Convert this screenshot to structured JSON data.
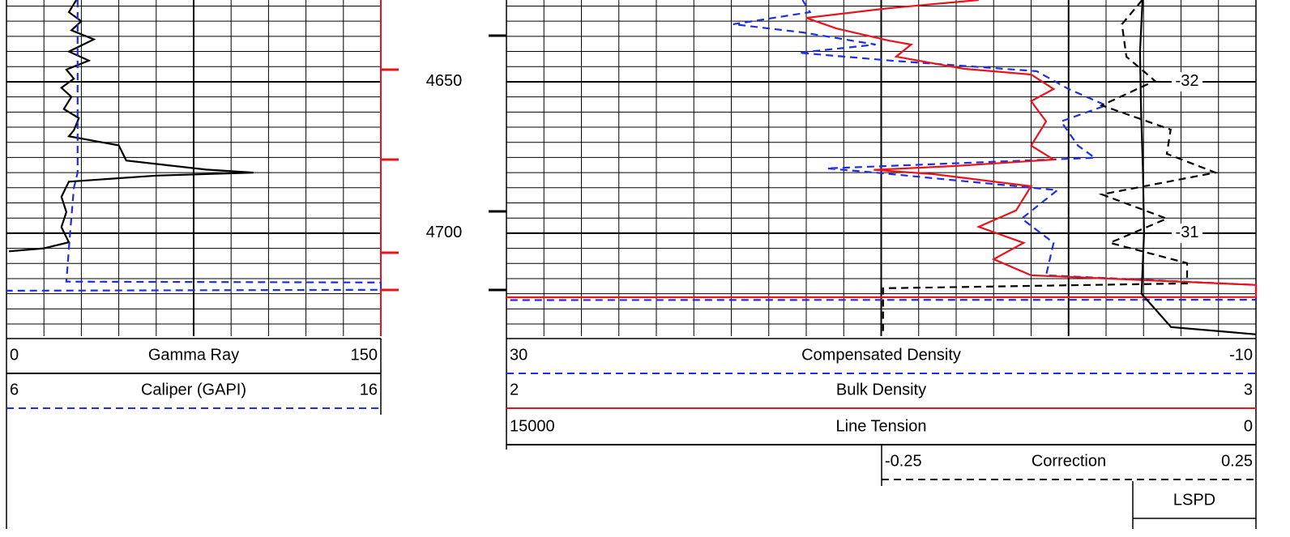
{
  "chart_data": {
    "type": "well-log",
    "ylim": [
      4623,
      4734
    ],
    "yticks": [
      4650,
      4700
    ],
    "grid": true,
    "tracks": [
      {
        "series": [
          {
            "name": "Gamma Ray",
            "color": "#000000",
            "dash": false,
            "xlim": [
              0,
              150
            ],
            "depth": [
              4623,
              4627,
              4630,
              4633,
              4636,
              4640,
              4643,
              4646,
              4649,
              4652,
              4655,
              4659,
              4662,
              4666,
              4668,
              4671,
              4676,
              4679,
              4680,
              4681,
              4683,
              4688,
              4693,
              4698,
              4703,
              4705,
              4706
            ],
            "values": [
              28,
              25,
              30,
              26,
              35,
              25,
              33,
              24,
              27,
              22,
              26,
              23,
              29,
              27,
              25,
              45,
              48,
              80,
              99,
              60,
              25,
              22,
              24,
              22,
              25,
              15,
              1
            ]
          },
          {
            "name": "Caliper (GAPI)",
            "color": "#1f2fe0",
            "dash": true,
            "xlim": [
              6,
              16
            ],
            "depth": [
              4623,
              4680,
              4685,
              4700,
              4716,
              4716.3,
              4718.7,
              4719
            ],
            "values": [
              7.9,
              7.9,
              7.8,
              7.7,
              7.6,
              16,
              16,
              6
            ]
          }
        ]
      },
      {
        "series": [
          {
            "name": "Compensated Density",
            "color": "#1f2fe0",
            "dash": true,
            "xlim": [
              30,
              -10
            ],
            "depth": [
              4623,
              4627,
              4631,
              4633.7,
              4637.7,
              4640.4,
              4643,
              4646.5,
              4652.4,
              4657.8,
              4663.1,
              4671.1,
              4675.1,
              4678.6,
              4680,
              4685.8,
              4695.2,
              4703.2,
              4713.9,
              4717.1,
              4722,
              4722.1
            ],
            "values": [
              14.2,
              13.8,
              17.9,
              14.2,
              10.3,
              14.4,
              9.5,
              1.7,
              0,
              -2,
              0.4,
              -0.5,
              -1.4,
              12.9,
              10.3,
              0.6,
              2.5,
              0.8,
              1.2,
              -10,
              -10,
              30
            ]
          },
          {
            "name": "Bulk Density",
            "color": "#e8141c",
            "dash": false,
            "xlim": [
              2,
              3
            ],
            "depth": [
              4623,
              4625.7,
              4628.9,
              4632.4,
              4636.4,
              4637.7,
              4641.7,
              4645.7,
              4647.6,
              4652.4,
              4656.4,
              4663.1,
              4671.1,
              4675.7,
              4677.8,
              4679.1,
              4680.5,
              4684.5,
              4692.5,
              4697.9,
              4703.2,
              4708.6,
              4713.9,
              4717.1,
              4721.1,
              4721.2
            ],
            "values": [
              2.63,
              2.51,
              2.4,
              2.44,
              2.51,
              2.54,
              2.52,
              2.61,
              2.7,
              2.73,
              2.7,
              2.72,
              2.7,
              2.73,
              2.6,
              2.49,
              2.57,
              2.7,
              2.68,
              2.63,
              2.69,
              2.65,
              2.7,
              3,
              3,
              2
            ]
          },
          {
            "name": "Line Tension",
            "color": "#000000",
            "dash": false,
            "xlim": [
              15000,
              0
            ],
            "depth": [
              4623,
              4640,
              4660,
              4680,
              4700,
              4720,
              4731,
              4733.4
            ],
            "values": [
              2270,
              2320,
              2300,
              2260,
              2240,
              2290,
              1700,
              0
            ]
          },
          {
            "name": "Correction",
            "color": "#000000",
            "dash": true,
            "xlim": [
              -0.25,
              0.25
            ],
            "depth": [
              4623,
              4631,
              4641.7,
              4649.7,
              4657.8,
              4665.8,
              4673.8,
              4680,
              4687.2,
              4695.2,
              4703.2,
              4709.9,
              4716.6,
              4718.2,
              4733.4
            ],
            "values": [
              0.098,
              0.071,
              0.077,
              0.115,
              0.044,
              0.136,
              0.131,
              0.196,
              0.044,
              0.131,
              0.055,
              0.158,
              0.158,
              -0.248,
              -0.248
            ]
          },
          {
            "name": "LSPD"
          }
        ],
        "annotations": [
          {
            "depth": 4650,
            "text": "-32"
          },
          {
            "depth": 4700,
            "text": "-31"
          }
        ]
      }
    ]
  }
}
